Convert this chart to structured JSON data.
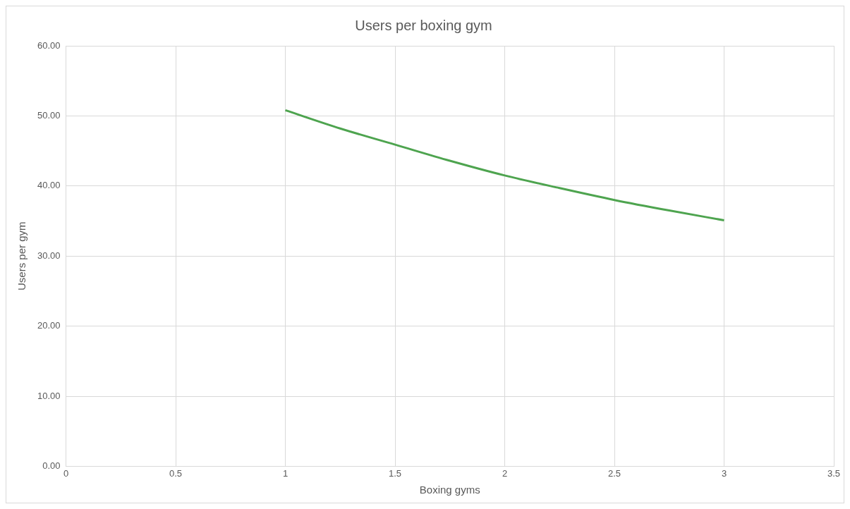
{
  "chart_data": {
    "type": "line",
    "title": "Users per boxing gym",
    "xlabel": "Boxing gyms",
    "ylabel": "Users per gym",
    "x": [
      1,
      1.25,
      1.5,
      1.75,
      2,
      2.25,
      2.5,
      2.75,
      3
    ],
    "series": [
      {
        "color": "#4ea44f",
        "values": [
          50.8,
          48.2,
          45.9,
          43.6,
          41.5,
          39.7,
          38.0,
          36.5,
          35.1
        ]
      }
    ],
    "xlim": [
      0,
      3.5
    ],
    "xticks": [
      0,
      0.5,
      1,
      1.5,
      2,
      2.5,
      3,
      3.5
    ],
    "ylim": [
      0,
      60
    ],
    "yticks": [
      {
        "value": 0,
        "label": "0.00"
      },
      {
        "value": 10,
        "label": "10.00"
      },
      {
        "value": 20,
        "label": "20.00"
      },
      {
        "value": 30,
        "label": "30.00"
      },
      {
        "value": 40,
        "label": "40.00"
      },
      {
        "value": 50,
        "label": "50.00"
      },
      {
        "value": 60,
        "label": "60.00"
      }
    ],
    "grid": true,
    "legend": false,
    "marker": "none",
    "line_style": "solid"
  }
}
